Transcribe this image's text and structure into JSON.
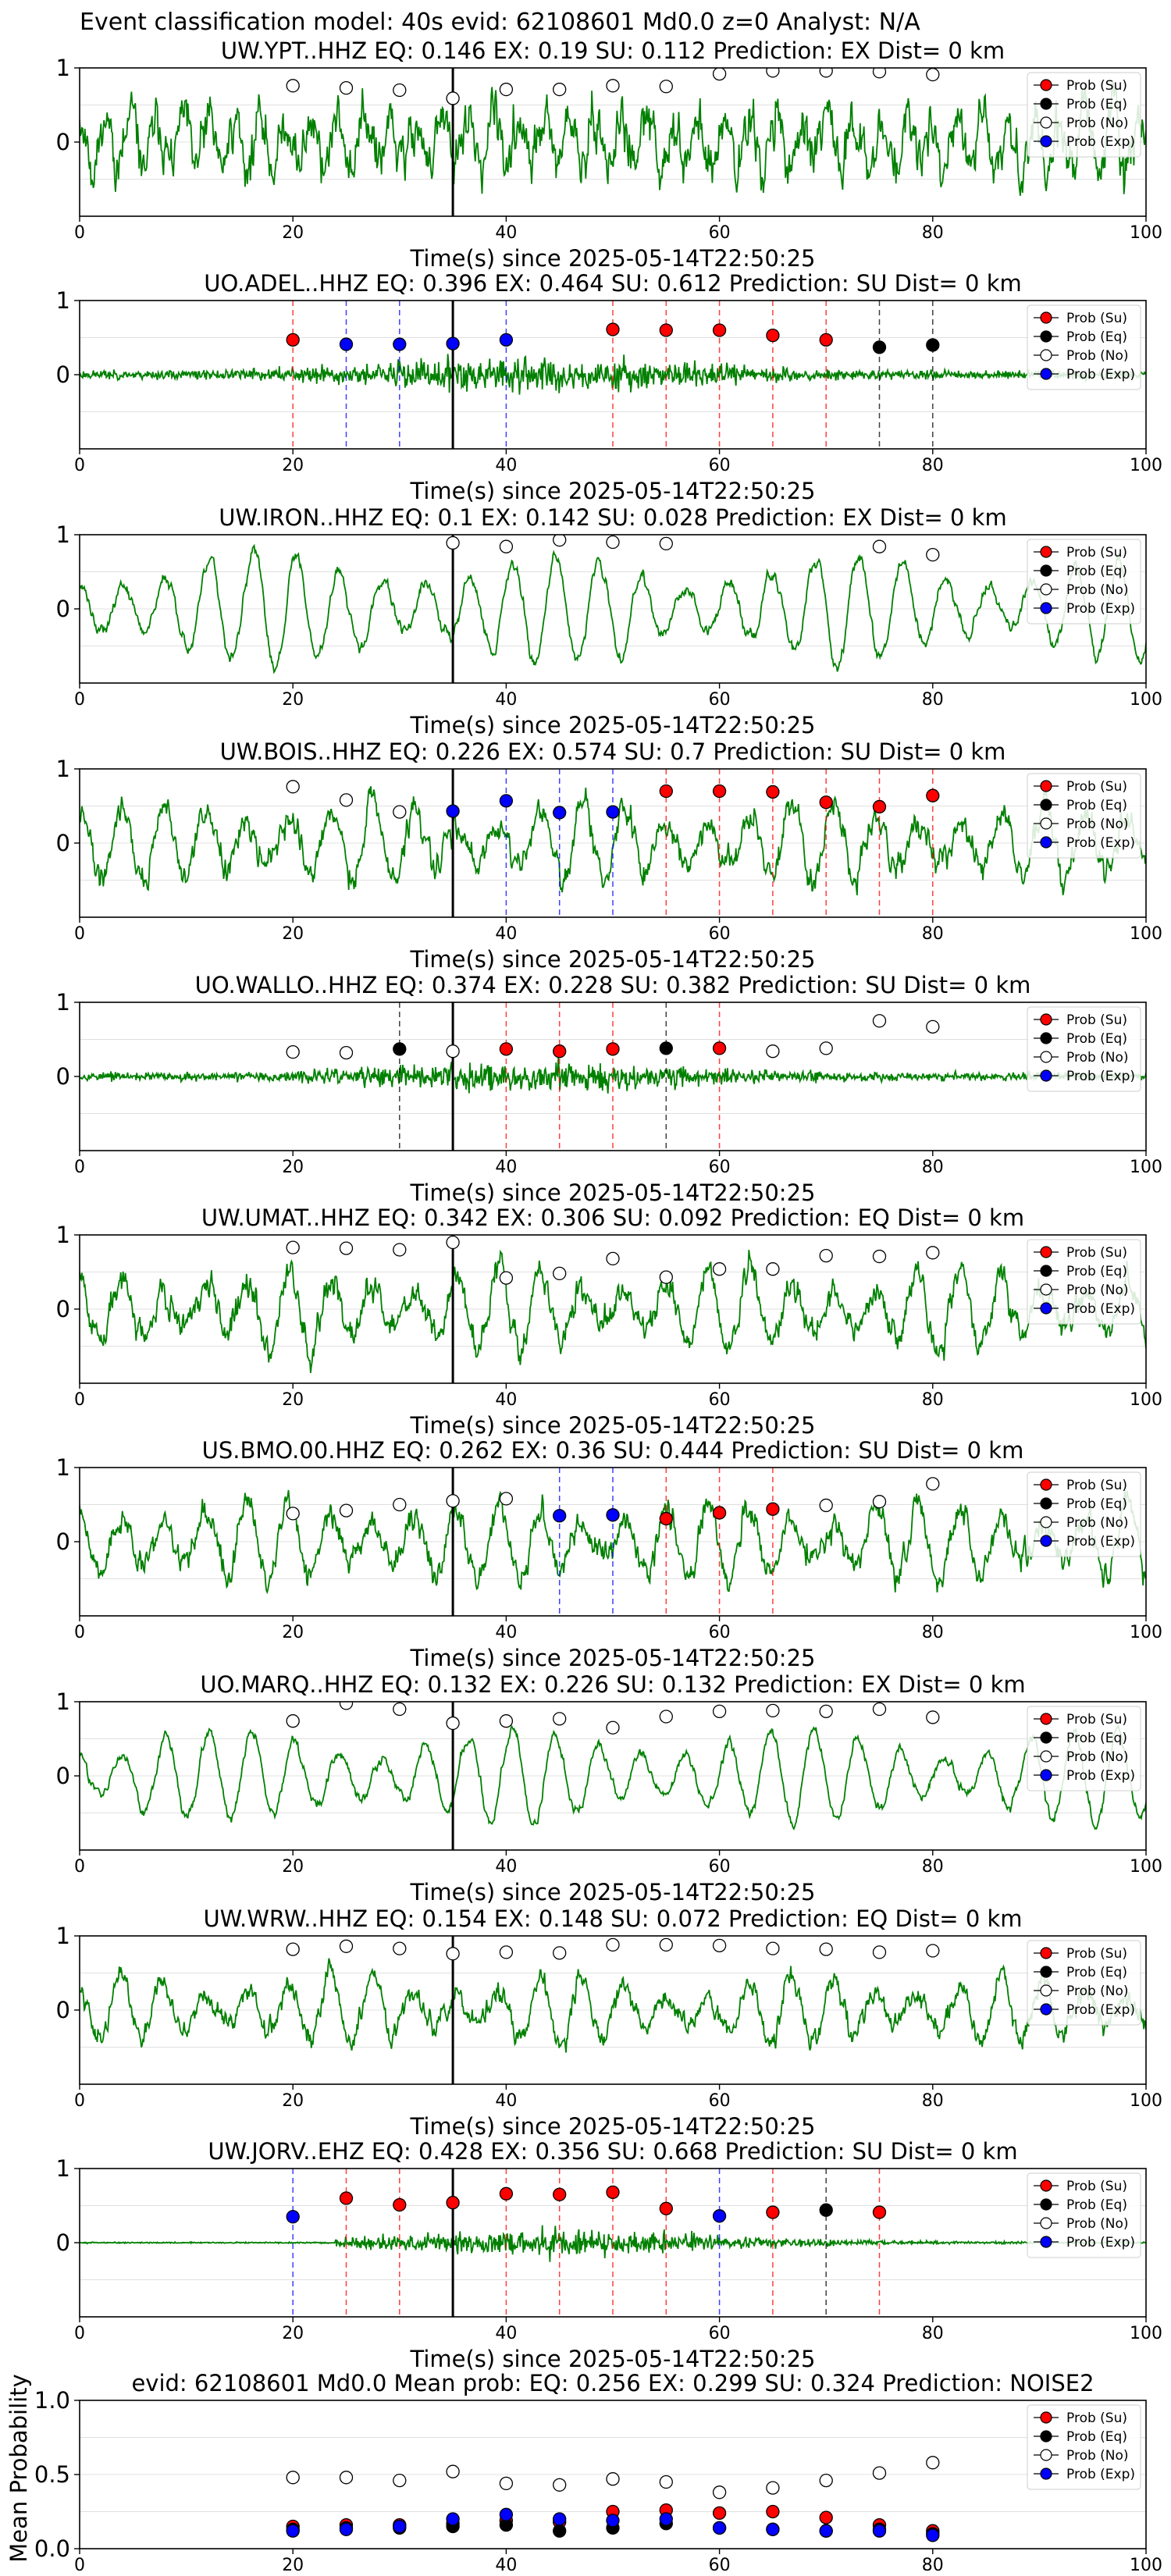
{
  "suptitle": "Event classification model: 40s evid: 62108601 Md0.0 z=0 Analyst: N/A",
  "colors": {
    "waveform": "#008000",
    "su": "#ff0000",
    "eq": "#000000",
    "no": "#ffffff",
    "exp": "#0000ff",
    "pick_line": "#000000",
    "grid": "#e0e0e0"
  },
  "legend": {
    "entries": [
      "Prob (Su)",
      "Prob (Eq)",
      "Prob (No)",
      "Prob (Exp)"
    ],
    "placement": "top-right"
  },
  "xlabel": "Time(s) since 2025-05-14T22:50:25",
  "chart_data": [
    {
      "type": "line",
      "title": "UW.YPT..HHZ   EQ: 0.146  EX: 0.19  SU: 0.112   Prediction: EX    Dist= 0 km",
      "xlabel": "Time(s) since 2025-05-14T22:50:25",
      "xlim": [
        0,
        100
      ],
      "ylim": [
        -1,
        1
      ],
      "xticks": [
        0,
        20,
        40,
        60,
        80,
        100
      ],
      "yticks": [
        1,
        0
      ],
      "pick_time": 35,
      "grid": true,
      "legend": "top-right",
      "waveform": {
        "style": "noisy",
        "amplitude": 0.75,
        "seed": 11
      },
      "markers": [
        {
          "x": 20,
          "class": "no",
          "p": 0.76
        },
        {
          "x": 25,
          "class": "no",
          "p": 0.73
        },
        {
          "x": 30,
          "class": "no",
          "p": 0.7
        },
        {
          "x": 35,
          "class": "no",
          "p": 0.59
        },
        {
          "x": 40,
          "class": "no",
          "p": 0.71
        },
        {
          "x": 45,
          "class": "no",
          "p": 0.71
        },
        {
          "x": 50,
          "class": "no",
          "p": 0.76
        },
        {
          "x": 55,
          "class": "no",
          "p": 0.75
        },
        {
          "x": 60,
          "class": "no",
          "p": 0.92
        },
        {
          "x": 65,
          "class": "no",
          "p": 0.96
        },
        {
          "x": 70,
          "class": "no",
          "p": 0.96
        },
        {
          "x": 75,
          "class": "no",
          "p": 0.95
        },
        {
          "x": 80,
          "class": "no",
          "p": 0.91
        }
      ]
    },
    {
      "type": "line",
      "title": "UO.ADEL..HHZ   EQ: 0.396  EX: 0.464  SU: 0.612   Prediction: SU    Dist= 0 km",
      "xlabel": "Time(s) since 2025-05-14T22:50:25",
      "xlim": [
        0,
        100
      ],
      "ylim": [
        -1,
        1
      ],
      "xticks": [
        0,
        20,
        40,
        60,
        80,
        100
      ],
      "yticks": [
        1,
        0
      ],
      "pick_time": 35,
      "grid": true,
      "legend": "top-right",
      "waveform": {
        "style": "burst",
        "amplitude": 0.35,
        "seed": 23
      },
      "markers": [
        {
          "x": 20,
          "class": "su",
          "p": 0.47
        },
        {
          "x": 25,
          "class": "exp",
          "p": 0.41
        },
        {
          "x": 30,
          "class": "exp",
          "p": 0.41
        },
        {
          "x": 35,
          "class": "exp",
          "p": 0.42
        },
        {
          "x": 40,
          "class": "exp",
          "p": 0.47
        },
        {
          "x": 50,
          "class": "su",
          "p": 0.61
        },
        {
          "x": 55,
          "class": "su",
          "p": 0.6
        },
        {
          "x": 60,
          "class": "su",
          "p": 0.6
        },
        {
          "x": 65,
          "class": "su",
          "p": 0.53
        },
        {
          "x": 70,
          "class": "su",
          "p": 0.47
        },
        {
          "x": 75,
          "class": "eq",
          "p": 0.37
        },
        {
          "x": 80,
          "class": "eq",
          "p": 0.4
        }
      ]
    },
    {
      "type": "line",
      "title": "UW.IRON..HHZ   EQ: 0.1  EX: 0.142  SU: 0.028   Prediction: EX    Dist= 0 km",
      "xlabel": "Time(s) since 2025-05-14T22:50:25",
      "xlim": [
        0,
        100
      ],
      "ylim": [
        -1,
        1
      ],
      "xticks": [
        0,
        20,
        40,
        60,
        80,
        100
      ],
      "yticks": [
        1,
        0
      ],
      "pick_time": 35,
      "grid": true,
      "legend": "top-right",
      "waveform": {
        "style": "wavy",
        "amplitude": 0.65,
        "seed": 37
      },
      "markers": [
        {
          "x": 35,
          "class": "no",
          "p": 0.89
        },
        {
          "x": 40,
          "class": "no",
          "p": 0.84
        },
        {
          "x": 45,
          "class": "no",
          "p": 0.93
        },
        {
          "x": 50,
          "class": "no",
          "p": 0.9
        },
        {
          "x": 55,
          "class": "no",
          "p": 0.88
        },
        {
          "x": 75,
          "class": "no",
          "p": 0.84
        },
        {
          "x": 80,
          "class": "no",
          "p": 0.73
        }
      ]
    },
    {
      "type": "line",
      "title": "UW.BOIS..HHZ   EQ: 0.226  EX: 0.574  SU: 0.7   Prediction: SU    Dist= 0 km",
      "xlabel": "Time(s) since 2025-05-14T22:50:25",
      "xlim": [
        0,
        100
      ],
      "ylim": [
        -1,
        1
      ],
      "xticks": [
        0,
        20,
        40,
        60,
        80,
        100
      ],
      "yticks": [
        1,
        0
      ],
      "pick_time": 35,
      "grid": true,
      "legend": "top-right",
      "waveform": {
        "style": "wavy-noisy",
        "amplitude": 0.6,
        "seed": 41
      },
      "markers": [
        {
          "x": 20,
          "class": "no",
          "p": 0.76
        },
        {
          "x": 25,
          "class": "no",
          "p": 0.58
        },
        {
          "x": 30,
          "class": "no",
          "p": 0.42
        },
        {
          "x": 35,
          "class": "exp",
          "p": 0.43
        },
        {
          "x": 40,
          "class": "exp",
          "p": 0.57
        },
        {
          "x": 45,
          "class": "exp",
          "p": 0.41
        },
        {
          "x": 50,
          "class": "exp",
          "p": 0.42
        },
        {
          "x": 55,
          "class": "su",
          "p": 0.7
        },
        {
          "x": 60,
          "class": "su",
          "p": 0.7
        },
        {
          "x": 65,
          "class": "su",
          "p": 0.69
        },
        {
          "x": 70,
          "class": "su",
          "p": 0.55
        },
        {
          "x": 75,
          "class": "su",
          "p": 0.49
        },
        {
          "x": 80,
          "class": "su",
          "p": 0.64
        }
      ]
    },
    {
      "type": "line",
      "title": "UO.WALLO..HHZ   EQ: 0.374  EX: 0.228  SU: 0.382   Prediction: SU    Dist= 0 km",
      "xlabel": "Time(s) since 2025-05-14T22:50:25",
      "xlim": [
        0,
        100
      ],
      "ylim": [
        -1,
        1
      ],
      "xticks": [
        0,
        20,
        40,
        60,
        80,
        100
      ],
      "yticks": [
        1,
        0
      ],
      "pick_time": 35,
      "grid": true,
      "legend": "top-right",
      "waveform": {
        "style": "burst",
        "amplitude": 0.3,
        "seed": 53
      },
      "markers": [
        {
          "x": 20,
          "class": "no",
          "p": 0.33
        },
        {
          "x": 25,
          "class": "no",
          "p": 0.32
        },
        {
          "x": 30,
          "class": "eq",
          "p": 0.37
        },
        {
          "x": 35,
          "class": "no",
          "p": 0.34
        },
        {
          "x": 40,
          "class": "su",
          "p": 0.37
        },
        {
          "x": 45,
          "class": "su",
          "p": 0.34
        },
        {
          "x": 50,
          "class": "su",
          "p": 0.37
        },
        {
          "x": 55,
          "class": "eq",
          "p": 0.38
        },
        {
          "x": 60,
          "class": "su",
          "p": 0.38
        },
        {
          "x": 65,
          "class": "no",
          "p": 0.34
        },
        {
          "x": 70,
          "class": "no",
          "p": 0.38
        },
        {
          "x": 75,
          "class": "no",
          "p": 0.75
        },
        {
          "x": 80,
          "class": "no",
          "p": 0.67
        }
      ]
    },
    {
      "type": "line",
      "title": "UW.UMAT..HHZ   EQ: 0.342  EX: 0.306  SU: 0.092   Prediction: EQ    Dist= 0 km",
      "xlabel": "Time(s) since 2025-05-14T22:50:25",
      "xlim": [
        0,
        100
      ],
      "ylim": [
        -1,
        1
      ],
      "xticks": [
        0,
        20,
        40,
        60,
        80,
        100
      ],
      "yticks": [
        1,
        0
      ],
      "pick_time": 35,
      "grid": true,
      "legend": "top-right",
      "waveform": {
        "style": "wavy-noisy",
        "amplitude": 0.65,
        "seed": 67
      },
      "markers": [
        {
          "x": 20,
          "class": "no",
          "p": 0.83
        },
        {
          "x": 25,
          "class": "no",
          "p": 0.82
        },
        {
          "x": 30,
          "class": "no",
          "p": 0.8
        },
        {
          "x": 35,
          "class": "no",
          "p": 0.9
        },
        {
          "x": 40,
          "class": "no",
          "p": 0.42
        },
        {
          "x": 45,
          "class": "no",
          "p": 0.48
        },
        {
          "x": 50,
          "class": "no",
          "p": 0.68
        },
        {
          "x": 55,
          "class": "no",
          "p": 0.43
        },
        {
          "x": 60,
          "class": "no",
          "p": 0.54
        },
        {
          "x": 65,
          "class": "no",
          "p": 0.54
        },
        {
          "x": 70,
          "class": "no",
          "p": 0.72
        },
        {
          "x": 75,
          "class": "no",
          "p": 0.71
        },
        {
          "x": 80,
          "class": "no",
          "p": 0.76
        }
      ]
    },
    {
      "type": "line",
      "title": "US.BMO.00.HHZ   EQ: 0.262  EX: 0.36  SU: 0.444   Prediction: SU    Dist= 0 km",
      "xlabel": "Time(s) since 2025-05-14T22:50:25",
      "xlim": [
        0,
        100
      ],
      "ylim": [
        -1,
        1
      ],
      "xticks": [
        0,
        20,
        40,
        60,
        80,
        100
      ],
      "yticks": [
        1,
        0
      ],
      "pick_time": 35,
      "grid": true,
      "legend": "top-right",
      "waveform": {
        "style": "wavy-noisy",
        "amplitude": 0.6,
        "seed": 79
      },
      "markers": [
        {
          "x": 20,
          "class": "no",
          "p": 0.38
        },
        {
          "x": 25,
          "class": "no",
          "p": 0.42
        },
        {
          "x": 30,
          "class": "no",
          "p": 0.5
        },
        {
          "x": 35,
          "class": "no",
          "p": 0.55
        },
        {
          "x": 40,
          "class": "no",
          "p": 0.58
        },
        {
          "x": 45,
          "class": "exp",
          "p": 0.35
        },
        {
          "x": 50,
          "class": "exp",
          "p": 0.36
        },
        {
          "x": 55,
          "class": "su",
          "p": 0.31
        },
        {
          "x": 60,
          "class": "su",
          "p": 0.39
        },
        {
          "x": 65,
          "class": "su",
          "p": 0.44
        },
        {
          "x": 70,
          "class": "no",
          "p": 0.49
        },
        {
          "x": 75,
          "class": "no",
          "p": 0.54
        },
        {
          "x": 80,
          "class": "no",
          "p": 0.78
        }
      ]
    },
    {
      "type": "line",
      "title": "UO.MARQ..HHZ   EQ: 0.132  EX: 0.226  SU: 0.132   Prediction: EX    Dist= 0 km",
      "xlabel": "Time(s) since 2025-05-14T22:50:25",
      "xlim": [
        0,
        100
      ],
      "ylim": [
        -1,
        1
      ],
      "xticks": [
        0,
        20,
        40,
        60,
        80,
        100
      ],
      "yticks": [
        1,
        0
      ],
      "pick_time": 35,
      "grid": true,
      "legend": "top-right",
      "waveform": {
        "style": "wavy",
        "amplitude": 0.55,
        "seed": 83
      },
      "markers": [
        {
          "x": 20,
          "class": "no",
          "p": 0.74
        },
        {
          "x": 25,
          "class": "no",
          "p": 0.98
        },
        {
          "x": 30,
          "class": "no",
          "p": 0.9
        },
        {
          "x": 35,
          "class": "no",
          "p": 0.71
        },
        {
          "x": 40,
          "class": "no",
          "p": 0.74
        },
        {
          "x": 45,
          "class": "no",
          "p": 0.77
        },
        {
          "x": 50,
          "class": "no",
          "p": 0.65
        },
        {
          "x": 55,
          "class": "no",
          "p": 0.8
        },
        {
          "x": 60,
          "class": "no",
          "p": 0.87
        },
        {
          "x": 65,
          "class": "no",
          "p": 0.88
        },
        {
          "x": 70,
          "class": "no",
          "p": 0.87
        },
        {
          "x": 75,
          "class": "no",
          "p": 0.9
        },
        {
          "x": 80,
          "class": "no",
          "p": 0.79
        }
      ]
    },
    {
      "type": "line",
      "title": "UW.WRW..HHZ   EQ: 0.154  EX: 0.148  SU: 0.072   Prediction: EQ    Dist= 0 km",
      "xlabel": "Time(s) since 2025-05-14T22:50:25",
      "xlim": [
        0,
        100
      ],
      "ylim": [
        -1,
        1
      ],
      "xticks": [
        0,
        20,
        40,
        60,
        80,
        100
      ],
      "yticks": [
        1,
        0
      ],
      "pick_time": 35,
      "grid": true,
      "legend": "top-right",
      "waveform": {
        "style": "wavy-noisy",
        "amplitude": 0.5,
        "seed": 97
      },
      "markers": [
        {
          "x": 20,
          "class": "no",
          "p": 0.82
        },
        {
          "x": 25,
          "class": "no",
          "p": 0.86
        },
        {
          "x": 30,
          "class": "no",
          "p": 0.83
        },
        {
          "x": 35,
          "class": "no",
          "p": 0.76
        },
        {
          "x": 40,
          "class": "no",
          "p": 0.78
        },
        {
          "x": 45,
          "class": "no",
          "p": 0.77
        },
        {
          "x": 50,
          "class": "no",
          "p": 0.88
        },
        {
          "x": 55,
          "class": "no",
          "p": 0.88
        },
        {
          "x": 60,
          "class": "no",
          "p": 0.87
        },
        {
          "x": 65,
          "class": "no",
          "p": 0.83
        },
        {
          "x": 70,
          "class": "no",
          "p": 0.82
        },
        {
          "x": 75,
          "class": "no",
          "p": 0.78
        },
        {
          "x": 80,
          "class": "no",
          "p": 0.8
        }
      ]
    },
    {
      "type": "line",
      "title": "UW.JORV..EHZ   EQ: 0.428  EX: 0.356  SU: 0.668   Prediction: SU    Dist= 0 km",
      "xlabel": "Time(s) since 2025-05-14T22:50:25",
      "xlim": [
        0,
        100
      ],
      "ylim": [
        -1,
        1
      ],
      "xticks": [
        0,
        20,
        40,
        60,
        80,
        100
      ],
      "yticks": [
        1,
        0
      ],
      "pick_time": 35,
      "grid": true,
      "legend": "top-right",
      "waveform": {
        "style": "quiet-burst",
        "amplitude": 0.3,
        "seed": 101
      },
      "markers": [
        {
          "x": 20,
          "class": "exp",
          "p": 0.35
        },
        {
          "x": 25,
          "class": "su",
          "p": 0.6
        },
        {
          "x": 30,
          "class": "su",
          "p": 0.51
        },
        {
          "x": 35,
          "class": "su",
          "p": 0.54
        },
        {
          "x": 40,
          "class": "su",
          "p": 0.66
        },
        {
          "x": 45,
          "class": "su",
          "p": 0.65
        },
        {
          "x": 50,
          "class": "su",
          "p": 0.68
        },
        {
          "x": 55,
          "class": "su",
          "p": 0.46
        },
        {
          "x": 60,
          "class": "exp",
          "p": 0.36
        },
        {
          "x": 65,
          "class": "su",
          "p": 0.41
        },
        {
          "x": 70,
          "class": "eq",
          "p": 0.44
        },
        {
          "x": 75,
          "class": "su",
          "p": 0.41
        }
      ]
    },
    {
      "type": "scatter",
      "title": "evid: 62108601  Md0.0   Mean prob:   EQ: 0.256  EX: 0.299  SU: 0.324   Prediction: NOISE2",
      "ylabel": "Mean Probability",
      "xlim": [
        0,
        100
      ],
      "ylim": [
        0,
        1.0
      ],
      "xticks": [
        0,
        20,
        40,
        60,
        80,
        100
      ],
      "yticks": [
        0.0,
        0.5,
        1.0
      ],
      "ytick_labels": [
        "0.0",
        "0.5",
        "1.0"
      ],
      "grid": true,
      "legend": "top-right",
      "x": [
        20,
        25,
        30,
        35,
        40,
        45,
        50,
        55,
        60,
        65,
        70,
        75,
        80
      ],
      "series": [
        {
          "name": "Prob (Su)",
          "class": "su",
          "values": [
            0.15,
            0.16,
            0.16,
            0.17,
            0.19,
            0.18,
            0.25,
            0.26,
            0.24,
            0.25,
            0.21,
            0.16,
            0.12
          ]
        },
        {
          "name": "Prob (Eq)",
          "class": "eq",
          "values": [
            0.13,
            0.14,
            0.14,
            0.15,
            0.16,
            0.12,
            0.14,
            0.17,
            0.14,
            0.13,
            0.12,
            0.13,
            0.1
          ]
        },
        {
          "name": "Prob (No)",
          "class": "no",
          "values": [
            0.48,
            0.48,
            0.46,
            0.52,
            0.44,
            0.43,
            0.47,
            0.45,
            0.38,
            0.41,
            0.46,
            0.51,
            0.58
          ]
        },
        {
          "name": "Prob (Exp)",
          "class": "exp",
          "values": [
            0.12,
            0.13,
            0.15,
            0.2,
            0.23,
            0.2,
            0.19,
            0.2,
            0.14,
            0.13,
            0.12,
            0.12,
            0.09
          ]
        }
      ]
    }
  ]
}
